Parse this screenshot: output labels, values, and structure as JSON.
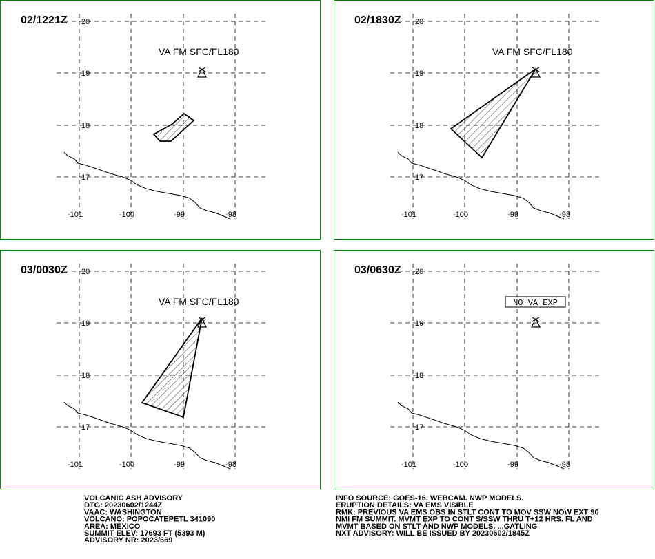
{
  "panels": [
    {
      "time": "02/1221Z",
      "annotation": "VA FM SFC/FL180",
      "lat_labels": [
        "20",
        "19",
        "18",
        "17"
      ],
      "lon_labels": [
        "-101",
        "-100",
        "-99",
        "-98"
      ]
    },
    {
      "time": "02/1830Z",
      "annotation": "VA FM SFC/FL180",
      "lat_labels": [
        "20",
        "19",
        "18",
        "17"
      ],
      "lon_labels": [
        "-101",
        "-100",
        "-99",
        "-98"
      ]
    },
    {
      "time": "03/0030Z",
      "annotation": "VA FM SFC/FL180",
      "lat_labels": [
        "20",
        "19",
        "18",
        "17"
      ],
      "lon_labels": [
        "-101",
        "-100",
        "-99",
        "-98"
      ]
    },
    {
      "time": "03/0630Z",
      "annotation": "NO VA EXP",
      "lat_labels": [
        "20",
        "19",
        "18",
        "17"
      ],
      "lon_labels": [
        "-101",
        "-100",
        "-99",
        "-98"
      ]
    }
  ],
  "advisory_left": [
    "VOLCANIC ASH ADVISORY",
    "DTG: 20230602/1244Z",
    "VAAC: WASHINGTON",
    "VOLCANO: POPOCATEPETL 341090",
    "AREA: MEXICO",
    "SUMMIT ELEV: 17693 FT (5393 M)",
    "ADVISORY NR: 2023/669"
  ],
  "advisory_right": [
    "INFO SOURCE: GOES-16. WEBCAM. NWP MODELS.",
    "ERUPTION DETAILS: VA EMS VISIBLE",
    "RMK: PREVIOUS VA EMS OBS IN STLT CONT TO MOV SSW NOW EXT 90",
    "NMI FM SUMMIT. MVMT EXP TO CONT S/SSW THRU T+12 HRS. FL AND",
    "MVMT BASED ON STLT AND NWP MODELS. ...GATLING",
    "NXT ADVISORY: WILL BE ISSUED BY 20230602/1845Z"
  ]
}
